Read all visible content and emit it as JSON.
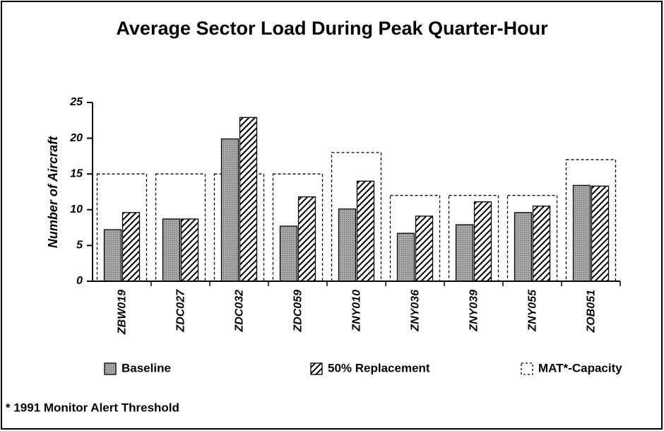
{
  "chart_data": {
    "type": "bar",
    "title": "Average Sector Load During Peak Quarter-Hour",
    "y_label": "Number of Aircraft",
    "categories": [
      "ZBW019",
      "ZDC027",
      "ZDC032",
      "ZDC059",
      "ZNY010",
      "ZNY036",
      "ZNY039",
      "ZNY055",
      "ZOB051"
    ],
    "series": [
      {
        "name": "Baseline",
        "color": "#a8a8a8",
        "fill": "stipple",
        "values": [
          7.2,
          8.7,
          19.9,
          7.7,
          10.1,
          6.7,
          7.9,
          9.6,
          13.4
        ]
      },
      {
        "name": "50% Replacement",
        "color": "#000000",
        "fill": "hatch",
        "values": [
          9.6,
          8.7,
          22.9,
          11.8,
          14.0,
          9.1,
          11.1,
          10.5,
          13.3
        ]
      },
      {
        "name": "MAT*-Capacity",
        "color": "#000000",
        "fill": "dashed",
        "values": [
          15,
          15,
          15,
          15,
          18,
          12,
          12,
          12,
          17
        ]
      }
    ],
    "ylim": [
      0,
      25
    ],
    "yticks": [
      0,
      5,
      10,
      15,
      20,
      25
    ],
    "grid": false,
    "footnote": "* 1991 Monitor Alert Threshold"
  }
}
